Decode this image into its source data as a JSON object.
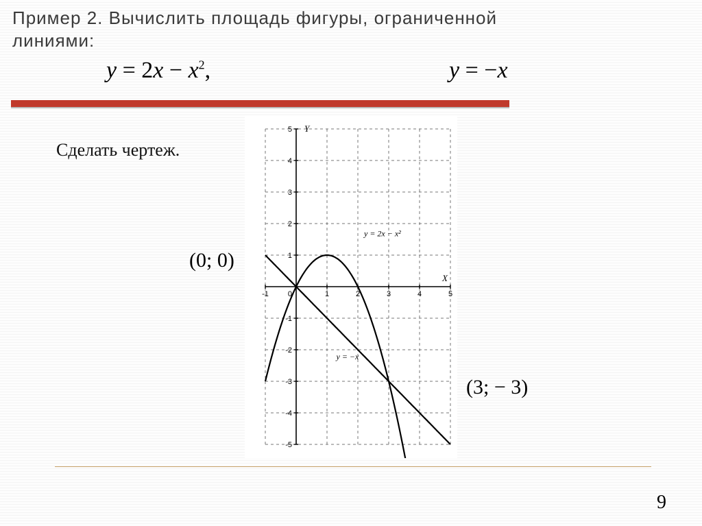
{
  "title_line1": "Пример 2. Вычислить площадь фигуры, ограниченной",
  "title_line2": "линиями:",
  "equation1_html": "y = 2x − x²,",
  "equation2_html": "y = −x",
  "subtitle": "Сделать чертеж.",
  "point1": "(0; 0)",
  "point2": "(3; − 3)",
  "page_number": "9",
  "chart": {
    "type": "math-plot",
    "xlim": [
      -1,
      5
    ],
    "ylim": [
      -5,
      5
    ],
    "xtick_step": 1,
    "ytick_step": 1,
    "x_axis_label": "X",
    "y_axis_label": "Y",
    "background_color": "#ffffff",
    "grid_color": "#777777",
    "grid_dash": "4,4",
    "axis_color": "#000000",
    "curve_color": "#000000",
    "line_width": 2.2,
    "label_fontsize": 11,
    "curves": [
      {
        "name": "parabola",
        "fn": "2*x - x*x",
        "label": "y = 2x − x²",
        "label_pos": [
          2.2,
          1.6
        ]
      },
      {
        "name": "line",
        "fn": "-x",
        "label": "y = −x",
        "label_pos": [
          1.3,
          -2.3
        ]
      }
    ],
    "intersections": [
      [
        0,
        0
      ],
      [
        3,
        -3
      ]
    ]
  },
  "colors": {
    "red_bar": "#c0392b",
    "title_text": "#3a3a3a",
    "rule": "#c9a36a"
  }
}
